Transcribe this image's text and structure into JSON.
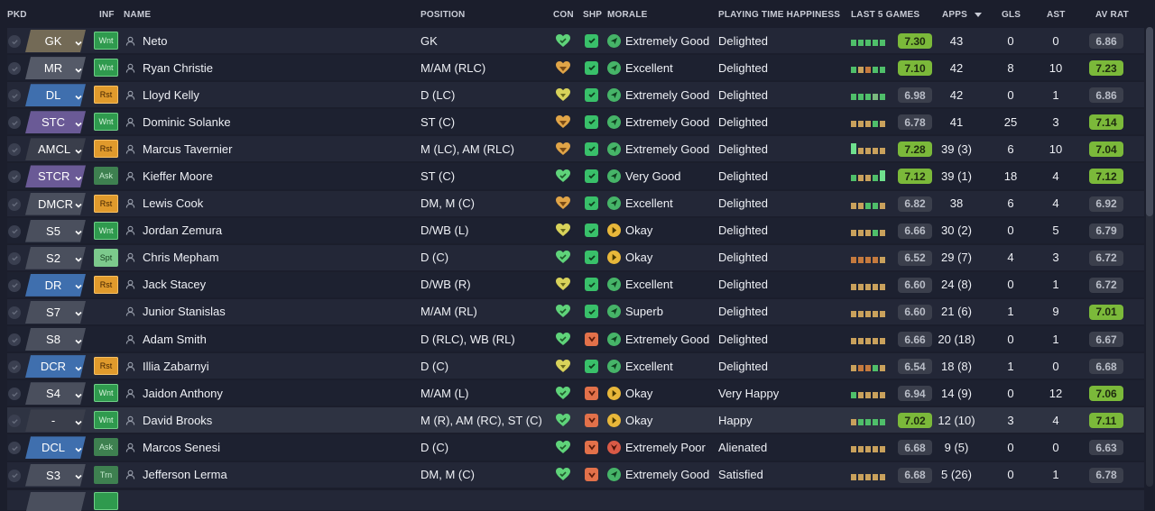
{
  "headers": {
    "pkd": "PKD",
    "inf": "INF",
    "name": "NAME",
    "position": "POSITION",
    "con": "CON",
    "shp": "SHP",
    "morale": "MORALE",
    "pth": "PLAYING TIME HAPPINESS",
    "last5": "LAST 5 GAMES",
    "apps": "APPS",
    "gls": "GLS",
    "ast": "AST",
    "avrat": "AV RAT"
  },
  "colors": {
    "background": "#1b1e2c",
    "rating_high": "#7bb93a",
    "rating_low": "#3b3f4c",
    "morale_good": "#46b468",
    "morale_okay": "#e8b73a",
    "morale_poor": "#d95a46"
  },
  "players": [
    {
      "pkd": "GK",
      "pkd_type": "gk",
      "inf": "Wnt",
      "inf_type": "green",
      "name": "Neto",
      "position": "GK",
      "con": "green",
      "shp": "green",
      "morale": "Extremely Good",
      "morale_level": "green",
      "pth": "Delighted",
      "last5": [
        "g",
        "g",
        "g",
        "g",
        "g"
      ],
      "last5_avg": "7.30",
      "last5_hi": true,
      "apps": "43",
      "gls": "0",
      "ast": "0",
      "avrat": "6.86",
      "avrat_hi": false
    },
    {
      "pkd": "MR",
      "pkd_type": "mid",
      "inf": "Wnt",
      "inf_type": "green",
      "name": "Ryan Christie",
      "position": "M/AM (RLC)",
      "con": "orange",
      "shp": "green",
      "morale": "Excellent",
      "morale_level": "green",
      "pth": "Delighted",
      "last5": [
        "g",
        "o",
        "r",
        "g",
        "g"
      ],
      "last5_avg": "7.10",
      "last5_hi": true,
      "apps": "42",
      "gls": "8",
      "ast": "10",
      "avrat": "7.23",
      "avrat_hi": true
    },
    {
      "pkd": "DL",
      "pkd_type": "def",
      "inf": "Rst",
      "inf_type": "orange",
      "name": "Lloyd Kelly",
      "position": "D (LC)",
      "con": "yellow",
      "shp": "green",
      "morale": "Extremely Good",
      "morale_level": "green",
      "pth": "Delighted",
      "last5": [
        "g",
        "g",
        "g",
        "lg",
        "g"
      ],
      "last5_avg": "6.98",
      "last5_hi": false,
      "apps": "42",
      "gls": "0",
      "ast": "1",
      "avrat": "6.86",
      "avrat_hi": false
    },
    {
      "pkd": "STC",
      "pkd_type": "att",
      "inf": "Wnt",
      "inf_type": "green",
      "name": "Dominic Solanke",
      "position": "ST (C)",
      "con": "orange",
      "shp": "green",
      "morale": "Extremely Good",
      "morale_level": "green",
      "pth": "Delighted",
      "last5": [
        "o",
        "o",
        "o",
        "g",
        "o"
      ],
      "last5_avg": "6.78",
      "last5_hi": false,
      "apps": "41",
      "gls": "25",
      "ast": "3",
      "avrat": "7.14",
      "avrat_hi": true
    },
    {
      "pkd": "AMCL",
      "pkd_type": "none",
      "inf": "Rst",
      "inf_type": "orange",
      "name": "Marcus Tavernier",
      "position": "M (LC), AM (RLC)",
      "con": "orange",
      "shp": "green",
      "morale": "Extremely Good",
      "morale_level": "green",
      "pth": "Delighted",
      "last5": [
        "hg",
        "o",
        "o",
        "o",
        "o"
      ],
      "last5_avg": "7.28",
      "last5_hi": true,
      "apps": "39 (3)",
      "gls": "6",
      "ast": "10",
      "avrat": "7.04",
      "avrat_hi": true
    },
    {
      "pkd": "STCR",
      "pkd_type": "att",
      "inf": "Ask",
      "inf_type": "dkgreen",
      "name": "Kieffer Moore",
      "position": "ST (C)",
      "con": "green",
      "shp": "green",
      "morale": "Very Good",
      "morale_level": "green",
      "pth": "Delighted",
      "last5": [
        "g",
        "o",
        "o",
        "g",
        "hg"
      ],
      "last5_avg": "7.12",
      "last5_hi": true,
      "apps": "39 (1)",
      "gls": "18",
      "ast": "4",
      "avrat": "7.12",
      "avrat_hi": true
    },
    {
      "pkd": "DMCR",
      "pkd_type": "sub",
      "inf": "Rst",
      "inf_type": "orange",
      "name": "Lewis Cook",
      "position": "DM, M (C)",
      "con": "orange",
      "shp": "green",
      "morale": "Excellent",
      "morale_level": "green",
      "pth": "Delighted",
      "last5": [
        "o",
        "o",
        "g",
        "g",
        "o"
      ],
      "last5_avg": "6.82",
      "last5_hi": false,
      "apps": "38",
      "gls": "6",
      "ast": "4",
      "avrat": "6.92",
      "avrat_hi": false
    },
    {
      "pkd": "S5",
      "pkd_type": "sub",
      "inf": "Wnt",
      "inf_type": "green",
      "name": "Jordan Zemura",
      "position": "D/WB (L)",
      "con": "yellow",
      "shp": "green",
      "morale": "Okay",
      "morale_level": "yellow",
      "pth": "Delighted",
      "last5": [
        "o",
        "o",
        "o",
        "g",
        "o"
      ],
      "last5_avg": "6.66",
      "last5_hi": false,
      "apps": "30 (2)",
      "gls": "0",
      "ast": "5",
      "avrat": "6.79",
      "avrat_hi": false
    },
    {
      "pkd": "S2",
      "pkd_type": "sub",
      "inf": "Spt",
      "inf_type": "ltgreen",
      "name": "Chris Mepham",
      "position": "D (C)",
      "con": "green",
      "shp": "green",
      "morale": "Okay",
      "morale_level": "yellow",
      "pth": "Delighted",
      "last5": [
        "r",
        "r",
        "r",
        "r",
        "o"
      ],
      "last5_avg": "6.52",
      "last5_hi": false,
      "apps": "29 (7)",
      "gls": "4",
      "ast": "3",
      "avrat": "6.72",
      "avrat_hi": false
    },
    {
      "pkd": "DR",
      "pkd_type": "def",
      "inf": "Rst",
      "inf_type": "orange",
      "name": "Jack Stacey",
      "position": "D/WB (R)",
      "con": "yellow",
      "shp": "green",
      "morale": "Excellent",
      "morale_level": "green",
      "pth": "Delighted",
      "last5": [
        "o",
        "o",
        "o",
        "o",
        "o"
      ],
      "last5_avg": "6.60",
      "last5_hi": false,
      "apps": "24 (8)",
      "gls": "0",
      "ast": "1",
      "avrat": "6.72",
      "avrat_hi": false
    },
    {
      "pkd": "S7",
      "pkd_type": "sub",
      "inf": "",
      "inf_type": "",
      "name": "Junior Stanislas",
      "position": "M/AM (RL)",
      "con": "green",
      "shp": "green",
      "morale": "Superb",
      "morale_level": "green",
      "pth": "Delighted",
      "last5": [
        "o",
        "o",
        "o",
        "o",
        "o"
      ],
      "last5_avg": "6.60",
      "last5_hi": false,
      "apps": "21 (6)",
      "gls": "1",
      "ast": "9",
      "avrat": "7.01",
      "avrat_hi": true
    },
    {
      "pkd": "S8",
      "pkd_type": "sub",
      "inf": "",
      "inf_type": "",
      "name": "Adam Smith",
      "position": "D (RLC), WB (RL)",
      "con": "green",
      "shp": "orange",
      "morale": "Extremely Good",
      "morale_level": "green",
      "pth": "Delighted",
      "last5": [
        "o",
        "o",
        "o",
        "o",
        "o"
      ],
      "last5_avg": "6.66",
      "last5_hi": false,
      "apps": "20 (18)",
      "gls": "0",
      "ast": "1",
      "avrat": "6.67",
      "avrat_hi": false
    },
    {
      "pkd": "DCR",
      "pkd_type": "def",
      "inf": "Rst",
      "inf_type": "orange",
      "name": "Illia Zabarnyi",
      "position": "D (C)",
      "con": "yellow",
      "shp": "green",
      "morale": "Excellent",
      "morale_level": "green",
      "pth": "Delighted",
      "last5": [
        "o",
        "r",
        "r",
        "g",
        "o"
      ],
      "last5_avg": "6.54",
      "last5_hi": false,
      "apps": "18 (8)",
      "gls": "1",
      "ast": "0",
      "avrat": "6.68",
      "avrat_hi": false
    },
    {
      "pkd": "S4",
      "pkd_type": "sub",
      "inf": "Wnt",
      "inf_type": "green",
      "name": "Jaidon Anthony",
      "position": "M/AM (L)",
      "con": "green",
      "shp": "orange",
      "morale": "Okay",
      "morale_level": "yellow",
      "pth": "Very Happy",
      "last5": [
        "g",
        "o",
        "o",
        "o",
        "o"
      ],
      "last5_avg": "6.94",
      "last5_hi": false,
      "apps": "14 (9)",
      "gls": "0",
      "ast": "12",
      "avrat": "7.06",
      "avrat_hi": true
    },
    {
      "pkd": "-",
      "pkd_type": "none",
      "inf": "Wnt",
      "inf_type": "green",
      "name": "David Brooks",
      "position": "M (R), AM (RC), ST (C)",
      "con": "green",
      "shp": "orange",
      "morale": "Okay",
      "morale_level": "yellow",
      "pth": "Happy",
      "last5": [
        "o",
        "g",
        "g",
        "g",
        "g"
      ],
      "last5_avg": "7.02",
      "last5_hi": true,
      "apps": "12 (10)",
      "gls": "3",
      "ast": "4",
      "avrat": "7.11",
      "avrat_hi": true,
      "selected": true
    },
    {
      "pkd": "DCL",
      "pkd_type": "def",
      "inf": "Ask",
      "inf_type": "dkgreen",
      "name": "Marcos Senesi",
      "position": "D (C)",
      "con": "green",
      "shp": "orange",
      "morale": "Extremely Poor",
      "morale_level": "red",
      "pth": "Alienated",
      "last5": [
        "o",
        "o",
        "o",
        "o",
        "o"
      ],
      "last5_avg": "6.68",
      "last5_hi": false,
      "apps": "9 (5)",
      "gls": "0",
      "ast": "0",
      "avrat": "6.63",
      "avrat_hi": false
    },
    {
      "pkd": "S3",
      "pkd_type": "sub",
      "inf": "Trn",
      "inf_type": "dkgreen",
      "name": "Jefferson Lerma",
      "position": "DM, M (C)",
      "con": "green",
      "shp": "orange",
      "morale": "Extremely Good",
      "morale_level": "green",
      "pth": "Satisfied",
      "last5": [
        "o",
        "o",
        "o",
        "o",
        "o"
      ],
      "last5_avg": "6.68",
      "last5_hi": false,
      "apps": "5 (26)",
      "gls": "0",
      "ast": "1",
      "avrat": "6.78",
      "avrat_hi": false
    }
  ]
}
